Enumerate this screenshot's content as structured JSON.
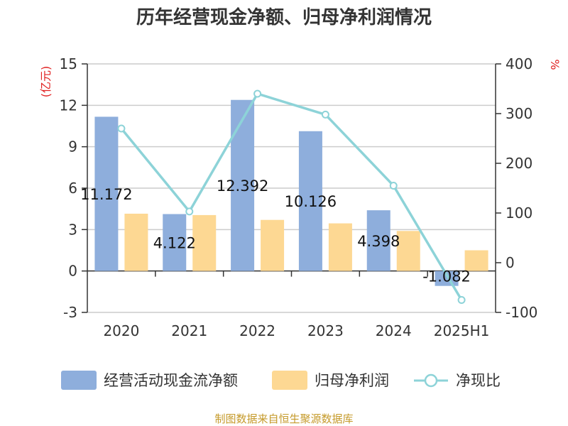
{
  "chart_data": {
    "type": "bar",
    "title": "历年经营现金净额、归母净利润情况",
    "categories": [
      "2020",
      "2021",
      "2022",
      "2023",
      "2024",
      "2025H1"
    ],
    "left_axis": {
      "unit": "(亿元)",
      "range": [
        -3,
        15
      ],
      "ticks": [
        "-3",
        "0",
        "3",
        "6",
        "9",
        "12",
        "15"
      ]
    },
    "right_axis": {
      "unit": "%",
      "range": [
        -100,
        400
      ],
      "ticks": [
        "-100",
        "0",
        "100",
        "200",
        "300",
        "400"
      ]
    },
    "series": [
      {
        "name": "经营活动现金流净额",
        "kind": "bar",
        "axis": "left",
        "color": "#8eaedc",
        "values": [
          11.172,
          4.122,
          12.392,
          10.126,
          4.398,
          -1.082
        ],
        "labels": [
          "11.172",
          "4.122",
          "12.392",
          "10.126",
          "4.398",
          "-1.082"
        ]
      },
      {
        "name": "归母净利润",
        "kind": "bar",
        "axis": "left",
        "color": "#fdd893",
        "values": [
          4.15,
          4.05,
          3.7,
          3.45,
          2.9,
          1.5
        ]
      },
      {
        "name": "净现比",
        "kind": "line",
        "axis": "right",
        "color": "#8dd3d8",
        "values": [
          270,
          103,
          340,
          298,
          155,
          -75
        ]
      }
    ],
    "grid": true,
    "legend": "bottom"
  },
  "source_note": "制图数据来自恒生聚源数据库"
}
